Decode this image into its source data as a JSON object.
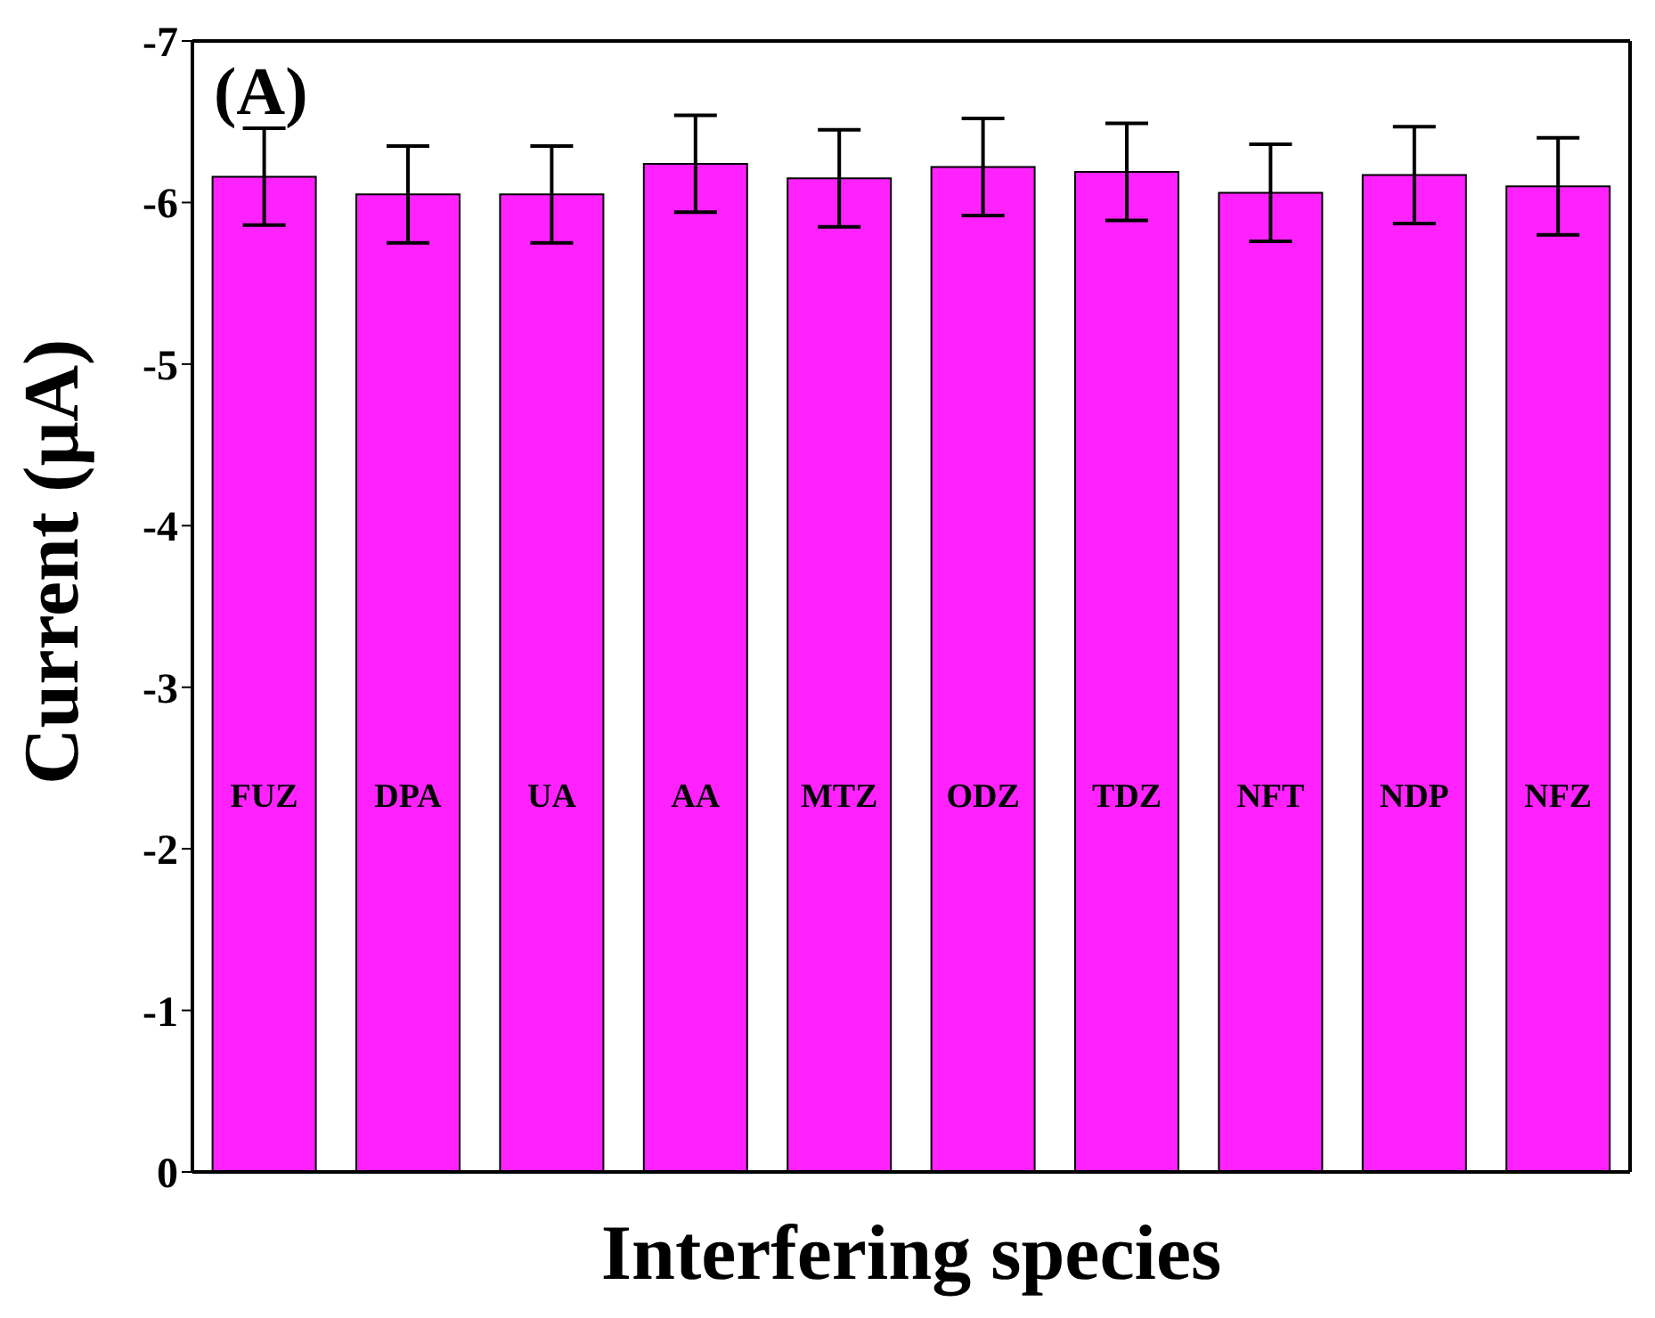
{
  "chart_data": {
    "type": "bar",
    "xlabel": "Interfering species",
    "ylabel": "Current (μA)",
    "annotations": [
      "(A)"
    ],
    "categories": [
      "FUZ",
      "DPA",
      "UA",
      "AA",
      "MTZ",
      "ODZ",
      "TDZ",
      "NFT",
      "NDP",
      "NFZ"
    ],
    "values": [
      -6.16,
      -6.05,
      -6.05,
      -6.24,
      -6.15,
      -6.22,
      -6.19,
      -6.06,
      -6.17,
      -6.1
    ],
    "errors": [
      0.3,
      0.3,
      0.3,
      0.3,
      0.3,
      0.3,
      0.3,
      0.3,
      0.3,
      0.3
    ],
    "color": "#ff22ff",
    "ylim": [
      0,
      -7
    ],
    "yticks": [
      0,
      -1,
      -2,
      -3,
      -4,
      -5,
      -6,
      -7
    ],
    "tick_labels": "y"
  }
}
